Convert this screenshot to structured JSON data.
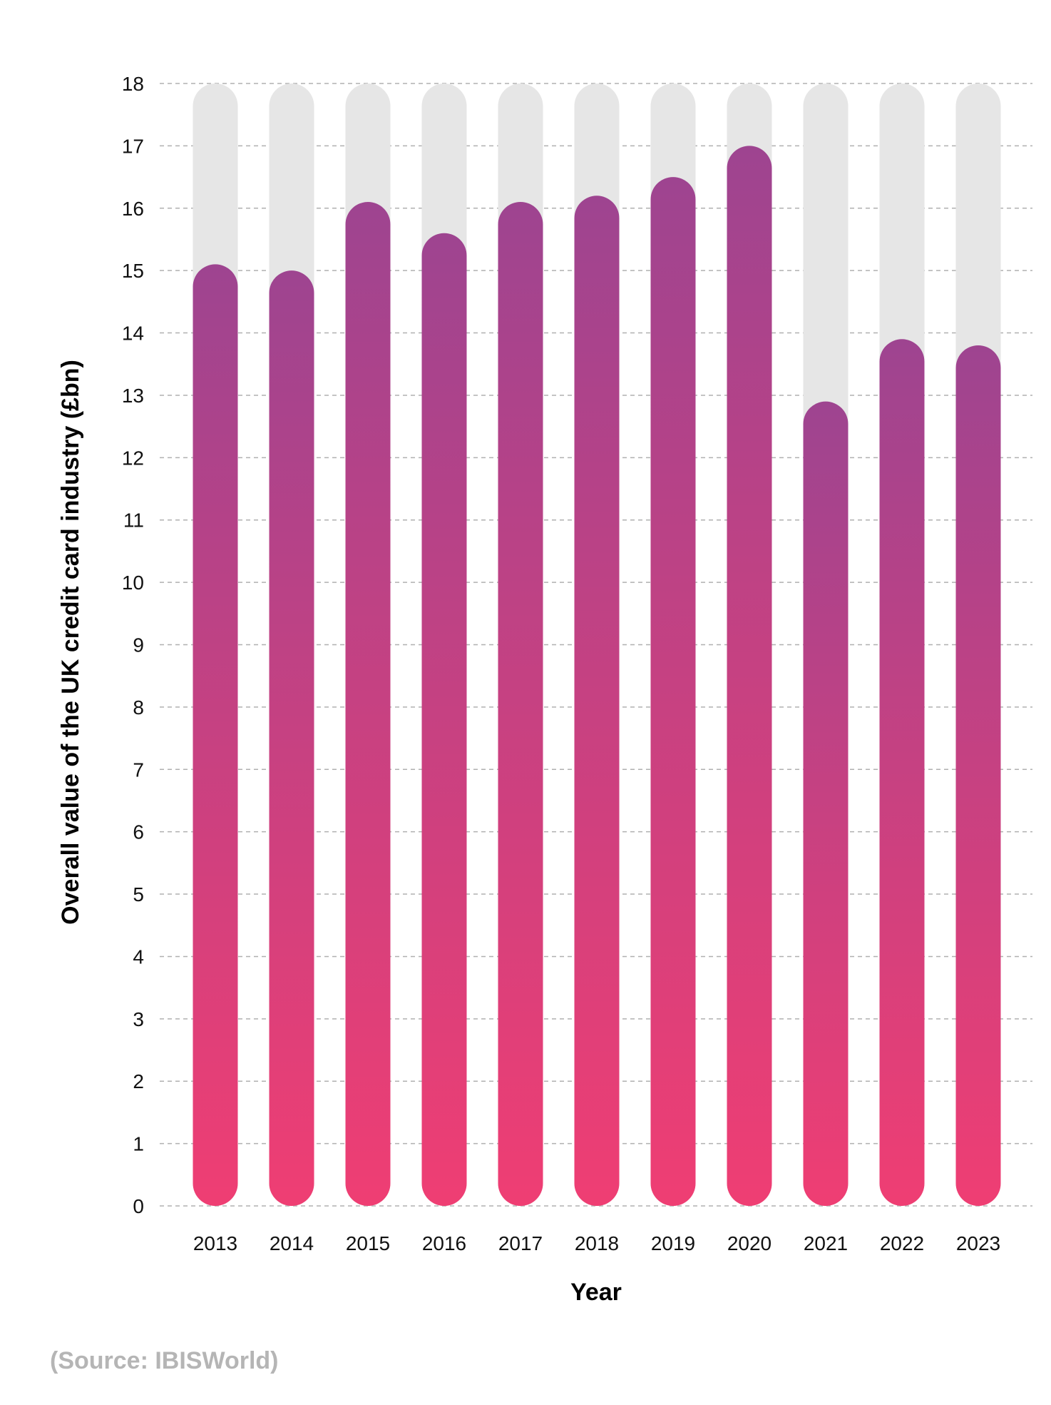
{
  "chart_data": {
    "type": "bar",
    "title": "",
    "xlabel": "Year",
    "ylabel": "Overall value of the UK credit card industry (£bn)",
    "categories": [
      "2013",
      "2014",
      "2015",
      "2016",
      "2017",
      "2018",
      "2019",
      "2020",
      "2021",
      "2022",
      "2023"
    ],
    "values": [
      15.1,
      15.0,
      16.1,
      15.6,
      16.1,
      16.2,
      16.5,
      17.0,
      12.9,
      13.9,
      13.8
    ],
    "ylim": [
      0,
      18
    ],
    "yticks": [
      0,
      1,
      2,
      3,
      4,
      5,
      6,
      7,
      8,
      9,
      10,
      11,
      12,
      13,
      14,
      15,
      16,
      17,
      18
    ],
    "grid": true,
    "background_bar_max": 18,
    "colors": {
      "bar_top": "#9e4490",
      "bar_bottom": "#ef3e73",
      "background_bar": "#e6e6e6",
      "grid": "#b0b0b0"
    }
  },
  "source": "(Source: IBISWorld)"
}
